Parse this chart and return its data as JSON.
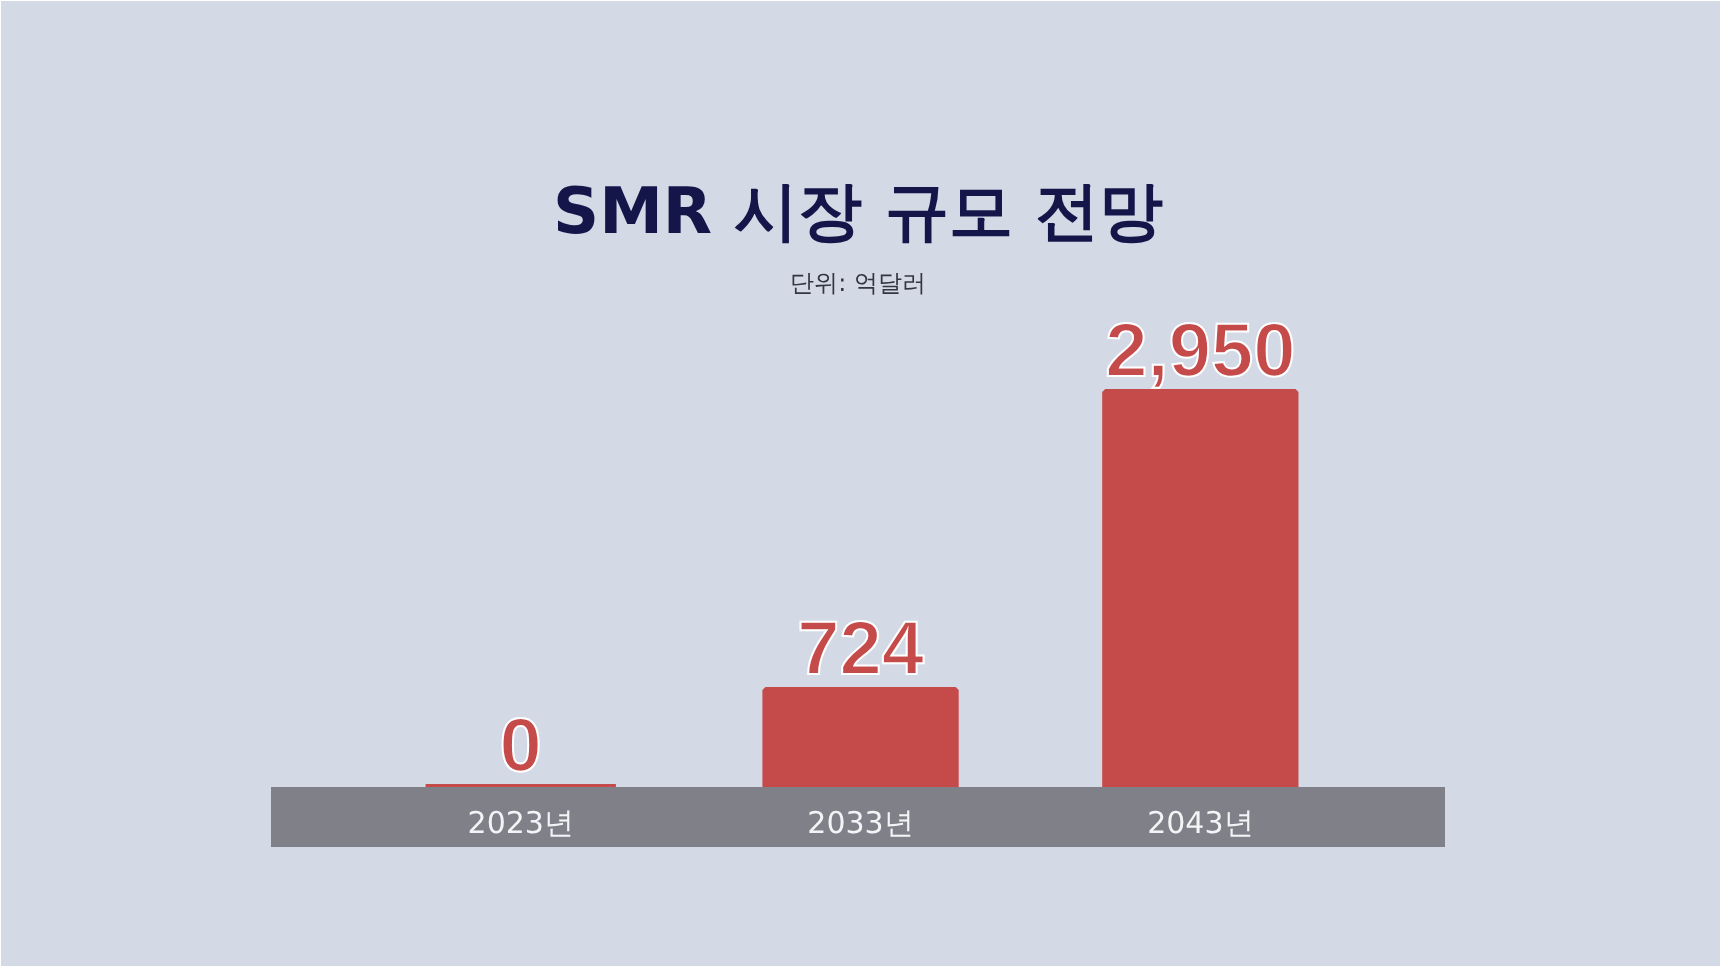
{
  "chart_data": {
    "type": "bar",
    "title": "SMR 시장 규모 전망",
    "subtitle": "단위: 억달러",
    "categories": [
      "2023년",
      "2033년",
      "2043년"
    ],
    "values": [
      0,
      724,
      2950
    ],
    "value_labels": [
      "0",
      "724",
      "2,950"
    ],
    "color": "#c54a4a",
    "grid": false
  }
}
